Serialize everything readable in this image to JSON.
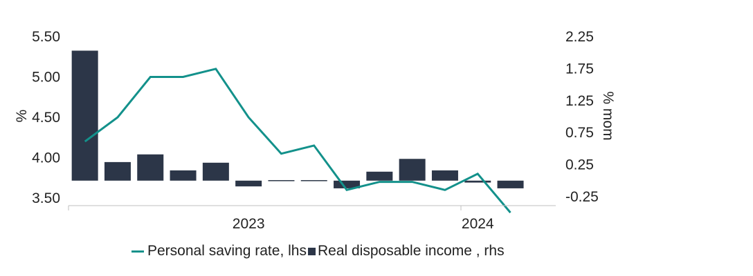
{
  "chart_data": {
    "type": "bar+line",
    "categories": [
      "2023-01",
      "2023-02",
      "2023-03",
      "2023-04",
      "2023-05",
      "2023-06",
      "2023-07",
      "2023-08",
      "2023-09",
      "2023-10",
      "2023-11",
      "2023-12",
      "2024-01",
      "2024-02"
    ],
    "x_tick_labels": [
      {
        "label": "2023",
        "category": "2023-06"
      },
      {
        "label": "2024",
        "category": "2024-01"
      }
    ],
    "series": [
      {
        "name": "Personal saving rate, lhs",
        "type": "line",
        "axis": "left",
        "color": "#13918B",
        "values": [
          4.2,
          4.5,
          5.0,
          5.0,
          5.1,
          4.5,
          4.05,
          4.15,
          3.6,
          3.7,
          3.7,
          3.6,
          3.8,
          3.32
        ]
      },
      {
        "name": "Real disposable income , rhs",
        "type": "bar",
        "axis": "right",
        "color": "#2C3648",
        "values": [
          2.03,
          0.29,
          0.41,
          0.16,
          0.28,
          -0.09,
          -0.01,
          0.0,
          -0.12,
          0.14,
          0.34,
          0.16,
          -0.03,
          -0.12
        ]
      }
    ],
    "y_left": {
      "label": "%",
      "ylim": [
        3.5,
        5.5
      ],
      "ticks": [
        "3.50",
        "4.00",
        "4.50",
        "5.00",
        "5.50"
      ]
    },
    "y_right": {
      "label": "% mom",
      "ylim": [
        -0.25,
        2.25
      ],
      "ticks": [
        "-0.25",
        "0.25",
        "0.75",
        "1.25",
        "1.75",
        "2.25"
      ]
    },
    "legend_position": "bottom",
    "grid": false
  }
}
